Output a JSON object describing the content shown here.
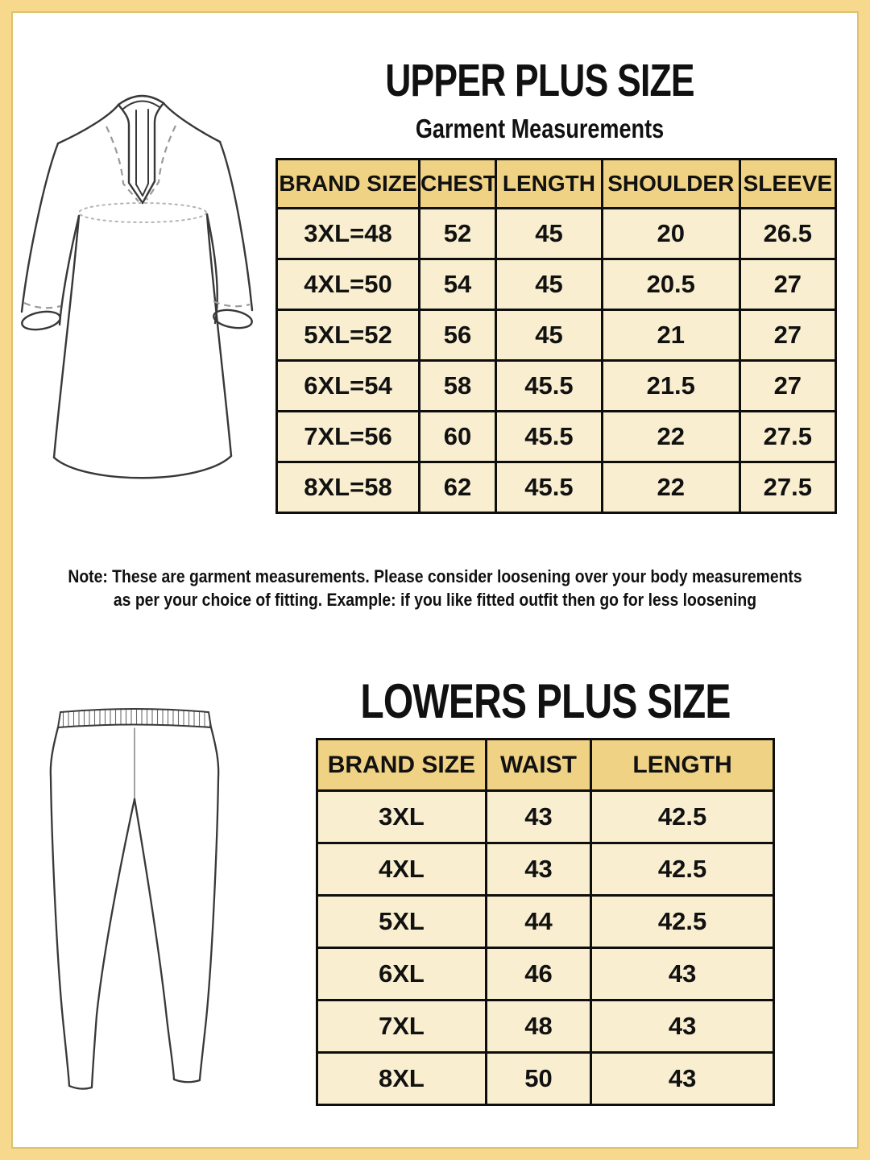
{
  "upper": {
    "title": "UPPER PLUS SIZE",
    "subtitle": "Garment Measurements",
    "table": {
      "headers": [
        "BRAND SIZE",
        "CHEST",
        "LENGTH",
        "SHOULDER",
        "SLEEVE"
      ],
      "rows": [
        [
          "3XL=48",
          "52",
          "45",
          "20",
          "26.5"
        ],
        [
          "4XL=50",
          "54",
          "45",
          "20.5",
          "27"
        ],
        [
          "5XL=52",
          "56",
          "45",
          "21",
          "27"
        ],
        [
          "6XL=54",
          "58",
          "45.5",
          "21.5",
          "27"
        ],
        [
          "7XL=56",
          "60",
          "45.5",
          "22",
          "27.5"
        ],
        [
          "8XL=58",
          "62",
          "45.5",
          "22",
          "27.5"
        ]
      ]
    }
  },
  "note": {
    "line1": "Note: These are garment measurements. Please consider loosening over your body measurements",
    "line2": "as per your choice of fitting. Example: if you like fitted outfit then go for less loosening"
  },
  "lower": {
    "title": "LOWERS PLUS SIZE",
    "table": {
      "headers": [
        "BRAND SIZE",
        "WAIST",
        "LENGTH"
      ],
      "rows": [
        [
          "3XL",
          "43",
          "42.5"
        ],
        [
          "4XL",
          "43",
          "42.5"
        ],
        [
          "5XL",
          "44",
          "42.5"
        ],
        [
          "6XL",
          "46",
          "43"
        ],
        [
          "7XL",
          "48",
          "43"
        ],
        [
          "8XL",
          "50",
          "43"
        ]
      ]
    }
  },
  "illustrations": {
    "kurta_alt": "kurta tunic line drawing",
    "pants_alt": "leggings line drawing"
  },
  "colors": {
    "border_gold": "#f6d98c",
    "border_inner": "#dfc26f",
    "header_bg": "#f0d284",
    "cell_bg": "#f9efd0",
    "text": "#111111"
  }
}
